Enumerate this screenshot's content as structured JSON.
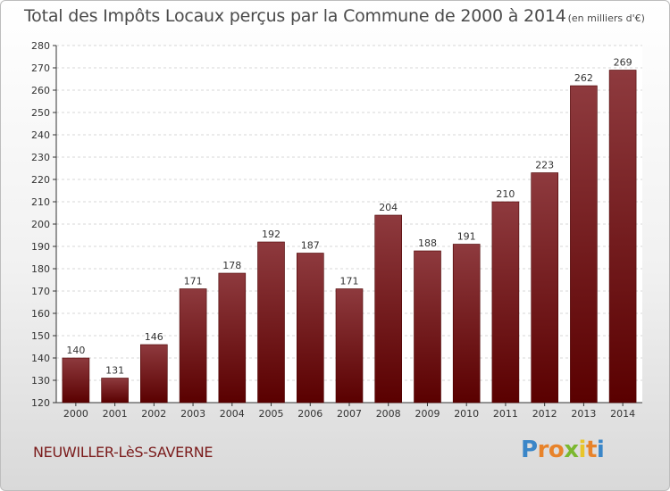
{
  "chart_data": {
    "type": "bar",
    "title": "Total des Impôts Locaux perçus par la Commune de 2000 à 2014",
    "unit": "(en milliers d'€)",
    "categories": [
      "2000",
      "2001",
      "2002",
      "2003",
      "2004",
      "2005",
      "2006",
      "2007",
      "2008",
      "2009",
      "2010",
      "2011",
      "2012",
      "2013",
      "2014"
    ],
    "values": [
      140,
      131,
      146,
      171,
      178,
      192,
      187,
      171,
      204,
      188,
      191,
      210,
      223,
      262,
      269
    ],
    "data_labels": [
      "140",
      "131",
      "146",
      "171",
      "178",
      "192",
      "187",
      "171",
      "204",
      "188",
      "191",
      "210",
      "223",
      "262",
      "269"
    ],
    "ylim": [
      120,
      280
    ],
    "yticks": [
      "120",
      "130",
      "140",
      "150",
      "160",
      "170",
      "180",
      "190",
      "200",
      "210",
      "220",
      "230",
      "240",
      "250",
      "260",
      "270",
      "280"
    ],
    "grid": true,
    "bar_color_top": "#8e3a3e",
    "bar_color_bottom": "#5a0000"
  },
  "commune_name": "NEUWILLER-LèS-SAVERNE",
  "logo": {
    "letters": [
      {
        "char": "P",
        "color": "#3a86c8"
      },
      {
        "char": "r",
        "color": "#e8832a"
      },
      {
        "char": "o",
        "color": "#e8832a"
      },
      {
        "char": "x",
        "color": "#7bb82f"
      },
      {
        "char": "i",
        "color": "#e8c52a"
      },
      {
        "char": "t",
        "color": "#e8832a"
      },
      {
        "char": "i",
        "color": "#3a86c8"
      }
    ]
  }
}
